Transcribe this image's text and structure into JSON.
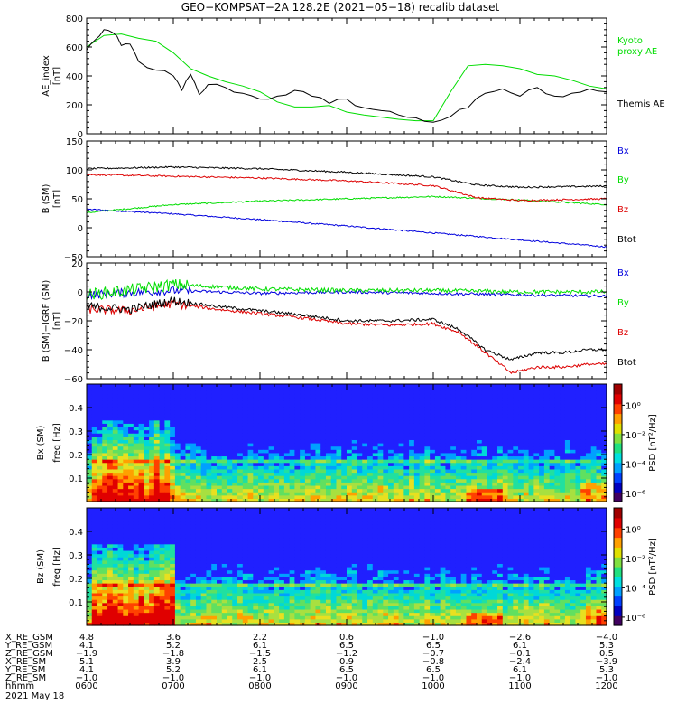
{
  "title": "GEO−KOMPSAT−2A 128.2E (2021−05−18) recalib dataset",
  "colors": {
    "green": "#00dd00",
    "black": "#000000",
    "blue": "#0000dd",
    "red": "#dd0000"
  },
  "footer": {
    "labels": [
      "X_RE_GSM",
      "Y_RE_GSM",
      "Z_RE_GSM",
      "X_RE_SM",
      "Y_RE_SM",
      "Z_RE_SM",
      "hhmm",
      "2021 May 18"
    ],
    "columns": [
      [
        "4.8",
        "4.1",
        "−1.9",
        "5.1",
        "4.1",
        "−1.0",
        "0600"
      ],
      [
        "3.6",
        "5.2",
        "−1.8",
        "3.9",
        "5.2",
        "−1.0",
        "0700"
      ],
      [
        "2.2",
        "6.1",
        "−1.5",
        "2.5",
        "6.1",
        "−1.0",
        "0800"
      ],
      [
        "0.6",
        "6.5",
        "−1.2",
        "0.9",
        "6.5",
        "−1.0",
        "0900"
      ],
      [
        "−1.0",
        "6.5",
        "−0.7",
        "−0.8",
        "6.5",
        "−1.0",
        "1000"
      ],
      [
        "−2.6",
        "6.1",
        "−0.1",
        "−2.4",
        "6.1",
        "−1.0",
        "1100"
      ],
      [
        "−4.0",
        "5.3",
        "0.5",
        "−3.9",
        "5.3",
        "−1.0",
        "1200"
      ]
    ]
  },
  "chart_data": [
    {
      "type": "line",
      "ylabel": "AE_index [nT]",
      "ylim": [
        0,
        800
      ],
      "yticks": [
        "0",
        "200",
        "400",
        "600",
        "800"
      ],
      "x_range_hours": [
        6,
        12
      ],
      "series": [
        {
          "name": "Kyoto proxy AE",
          "color": "#00dd00",
          "x": [
            6.0,
            6.2,
            6.4,
            6.6,
            6.8,
            7.0,
            7.2,
            7.4,
            7.6,
            7.8,
            8.0,
            8.2,
            8.4,
            8.6,
            8.8,
            9.0,
            9.2,
            9.4,
            9.6,
            9.8,
            10.0,
            10.2,
            10.4,
            10.6,
            10.8,
            11.0,
            11.2,
            11.4,
            11.6,
            11.8,
            12.0
          ],
          "y": [
            600,
            680,
            690,
            660,
            640,
            560,
            450,
            400,
            360,
            330,
            290,
            220,
            185,
            185,
            195,
            150,
            130,
            115,
            100,
            90,
            90,
            290,
            470,
            480,
            470,
            450,
            410,
            400,
            370,
            330,
            310
          ]
        },
        {
          "name": "Themis AE",
          "color": "#000000",
          "x": [
            6.0,
            6.1,
            6.2,
            6.3,
            6.4,
            6.5,
            6.6,
            6.8,
            7.0,
            7.1,
            7.2,
            7.3,
            7.4,
            7.6,
            7.8,
            8.0,
            8.2,
            8.4,
            8.6,
            8.8,
            9.0,
            9.2,
            9.4,
            9.6,
            9.8,
            10.0,
            10.2,
            10.4,
            10.6,
            10.8,
            11.0,
            11.2,
            11.4,
            11.6,
            11.8,
            12.0
          ],
          "y": [
            580,
            650,
            720,
            700,
            610,
            620,
            500,
            440,
            400,
            300,
            410,
            270,
            340,
            320,
            280,
            240,
            260,
            300,
            260,
            210,
            240,
            180,
            160,
            130,
            110,
            80,
            120,
            180,
            280,
            310,
            260,
            320,
            260,
            280,
            310,
            290
          ]
        }
      ]
    },
    {
      "type": "line",
      "ylabel": "B (SM) [nT]",
      "ylim": [
        -50,
        150
      ],
      "yticks": [
        "−50",
        "0",
        "50",
        "100",
        "150"
      ],
      "x_range_hours": [
        6,
        12
      ],
      "series": [
        {
          "name": "Bx",
          "color": "#0000dd",
          "x": [
            6,
            7,
            8,
            9,
            10,
            11,
            12
          ],
          "y": [
            32,
            24,
            14,
            3,
            -9,
            -21,
            -33
          ]
        },
        {
          "name": "By",
          "color": "#00dd00",
          "x": [
            6,
            7,
            8,
            9,
            10,
            11,
            12
          ],
          "y": [
            26,
            40,
            46,
            50,
            54,
            48,
            40
          ]
        },
        {
          "name": "Bz",
          "color": "#dd0000",
          "x": [
            6,
            7,
            8,
            9,
            10,
            10.5,
            11,
            12
          ],
          "y": [
            92,
            89,
            86,
            81,
            73,
            52,
            47,
            50
          ]
        },
        {
          "name": "Btot",
          "color": "#000000",
          "x": [
            6,
            7,
            8,
            9,
            10,
            10.5,
            11,
            12
          ],
          "y": [
            102,
            105,
            102,
            96,
            88,
            74,
            70,
            72
          ]
        }
      ]
    },
    {
      "type": "line",
      "ylabel": "B (SM)−IGRF (SM) [nT]",
      "ylim": [
        -60,
        20
      ],
      "yticks": [
        "−60",
        "−40",
        "−20",
        "0",
        "20"
      ],
      "x_range_hours": [
        6,
        12
      ],
      "series": [
        {
          "name": "Bx",
          "color": "#0000dd",
          "x": [
            6,
            7,
            8,
            9,
            10,
            11,
            12
          ],
          "y": [
            -2,
            1,
            -1,
            0,
            -1,
            -2,
            -3
          ]
        },
        {
          "name": "By",
          "color": "#00dd00",
          "x": [
            6,
            6.6,
            7,
            8,
            9,
            10,
            11,
            12
          ],
          "y": [
            -2,
            2,
            5,
            2,
            1,
            1,
            0,
            0
          ]
        },
        {
          "name": "Bz",
          "color": "#dd0000",
          "x": [
            6,
            6.5,
            7,
            7.5,
            8,
            8.5,
            9,
            9.5,
            10,
            10.3,
            10.6,
            10.9,
            11.2,
            11.5,
            11.8,
            12
          ],
          "y": [
            -12,
            -13,
            -8,
            -12,
            -15,
            -18,
            -22,
            -23,
            -22,
            -28,
            -42,
            -56,
            -52,
            -52,
            -50,
            -50
          ]
        },
        {
          "name": "Btot",
          "color": "#000000",
          "x": [
            6,
            6.5,
            7,
            7.5,
            8,
            8.5,
            9,
            9.5,
            10,
            10.3,
            10.6,
            10.9,
            11.2,
            11.5,
            11.8,
            12
          ],
          "y": [
            -10,
            -12,
            -6,
            -10,
            -13,
            -16,
            -20,
            -20,
            -19,
            -26,
            -40,
            -47,
            -42,
            -42,
            -40,
            -40
          ]
        }
      ]
    },
    {
      "type": "heatmap",
      "ylabel": "Bx (SM) freq [Hz]",
      "ylim": [
        0,
        0.5
      ],
      "yticks": [
        "0.1",
        "0.2",
        "0.3",
        "0.4"
      ],
      "colorbar_label": "PSD [nT²/Hz]",
      "colorbar_ticks": [
        "10⁰",
        "10⁻²",
        "10⁻⁴",
        "10⁻⁶"
      ],
      "x_range_hours": [
        6,
        12
      ]
    },
    {
      "type": "heatmap",
      "ylabel": "Bz (SM) freq [Hz]",
      "ylim": [
        0,
        0.5
      ],
      "yticks": [
        "0.1",
        "0.2",
        "0.3",
        "0.4"
      ],
      "colorbar_label": "PSD [nT²/Hz]",
      "colorbar_ticks": [
        "10⁰",
        "10⁻²",
        "10⁻⁴",
        "10⁻⁶"
      ],
      "x_range_hours": [
        6,
        12
      ]
    }
  ],
  "legends": {
    "ae": [
      {
        "text": "Kyoto",
        "color": "#00dd00"
      },
      {
        "text": "proxy AE",
        "color": "#00dd00"
      },
      {
        "text": "Themis AE",
        "color": "#000000"
      }
    ],
    "b": [
      {
        "text": "Bx",
        "color": "#0000dd"
      },
      {
        "text": "By",
        "color": "#00dd00"
      },
      {
        "text": "Bz",
        "color": "#dd0000"
      },
      {
        "text": "Btot",
        "color": "#000000"
      }
    ],
    "d": [
      {
        "text": "Bx",
        "color": "#0000dd"
      },
      {
        "text": "By",
        "color": "#00dd00"
      },
      {
        "text": "Bz",
        "color": "#dd0000"
      },
      {
        "text": "Btot",
        "color": "#000000"
      }
    ]
  }
}
